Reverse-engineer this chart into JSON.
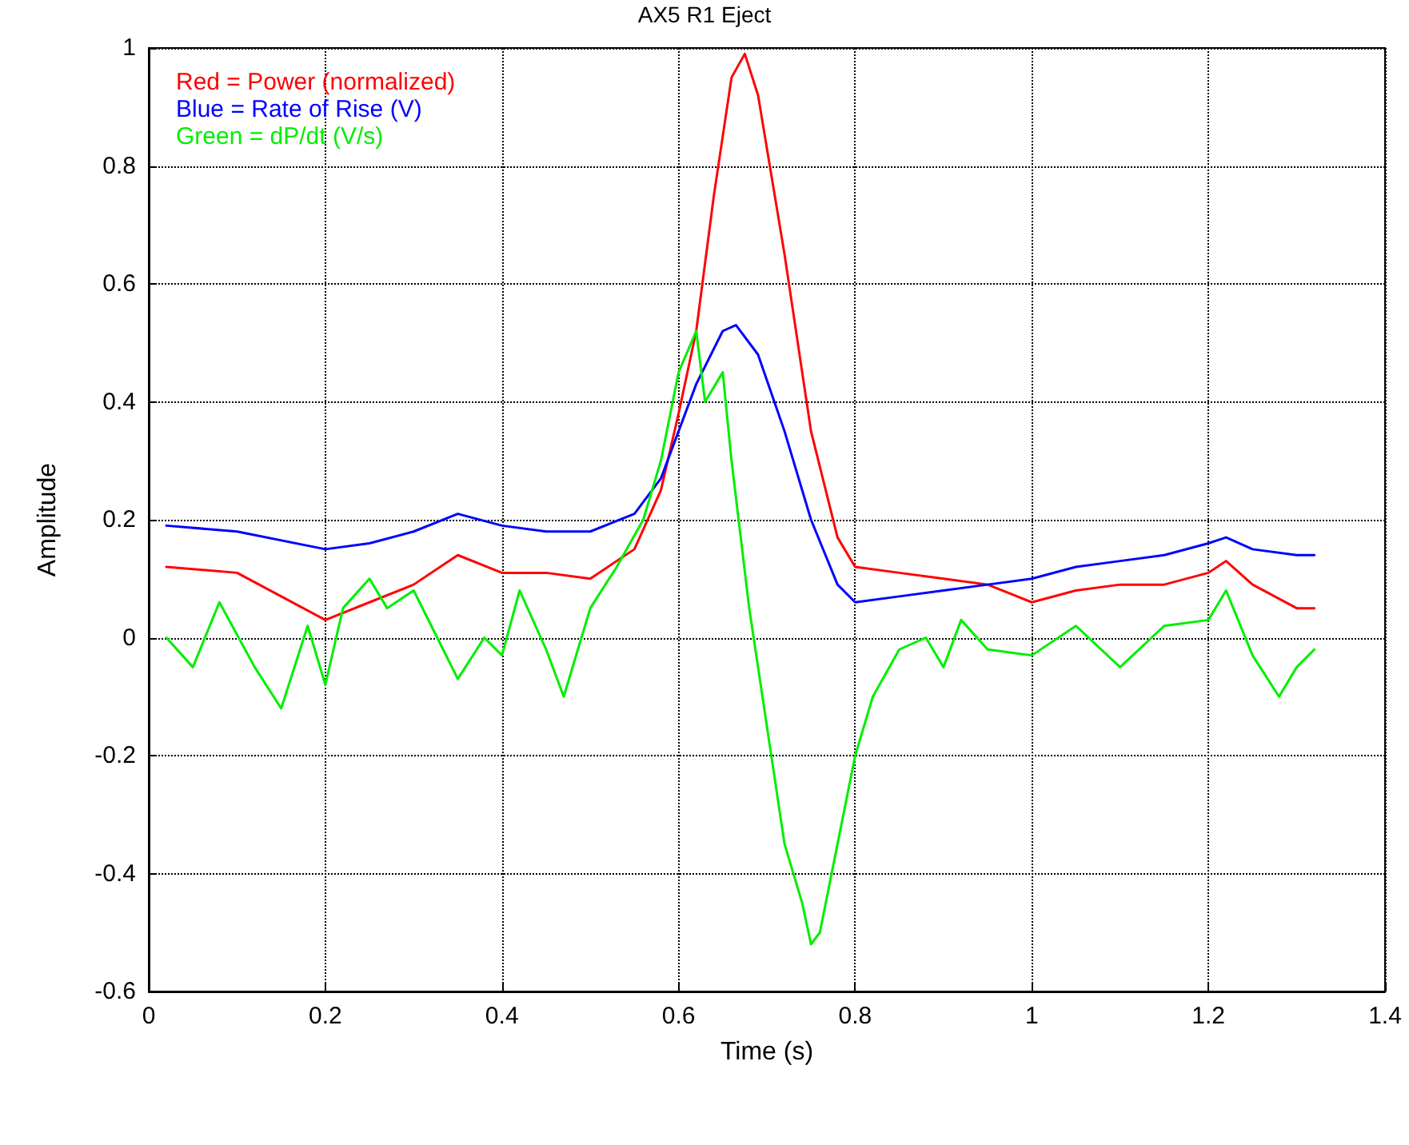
{
  "chart_data": {
    "type": "line",
    "title": "AX5 R1 Eject",
    "xlabel": "Time (s)",
    "ylabel": "Amplitude",
    "xlim": [
      0,
      1.4
    ],
    "xticks": [
      0,
      0.2,
      0.4,
      0.6,
      0.8,
      1,
      1.2,
      1.4
    ],
    "ylim": [
      -0.6,
      1
    ],
    "yticks": [
      -0.6,
      -0.4,
      -0.2,
      0,
      0.2,
      0.4,
      0.6,
      0.8,
      1
    ],
    "grid": true,
    "legend": "top left",
    "marker": "none",
    "line_style": "solid",
    "series": [
      {
        "name": "Red = Power (normalized)",
        "color": "#ff0000",
        "x": [
          0.02,
          0.1,
          0.15,
          0.2,
          0.25,
          0.3,
          0.35,
          0.4,
          0.45,
          0.5,
          0.55,
          0.58,
          0.6,
          0.62,
          0.64,
          0.66,
          0.675,
          0.69,
          0.72,
          0.75,
          0.78,
          0.8,
          0.85,
          0.9,
          0.95,
          1.0,
          1.05,
          1.1,
          1.15,
          1.2,
          1.22,
          1.25,
          1.3,
          1.32
        ],
        "values": [
          0.12,
          0.11,
          0.07,
          0.03,
          0.06,
          0.09,
          0.14,
          0.11,
          0.11,
          0.1,
          0.15,
          0.25,
          0.38,
          0.52,
          0.75,
          0.95,
          0.99,
          0.92,
          0.65,
          0.35,
          0.17,
          0.12,
          0.11,
          0.1,
          0.09,
          0.06,
          0.08,
          0.09,
          0.09,
          0.11,
          0.13,
          0.09,
          0.05,
          0.05
        ]
      },
      {
        "name": "Blue = Rate of Rise (V)",
        "color": "#0000ff",
        "x": [
          0.02,
          0.1,
          0.2,
          0.25,
          0.3,
          0.35,
          0.4,
          0.45,
          0.5,
          0.55,
          0.58,
          0.6,
          0.62,
          0.65,
          0.665,
          0.69,
          0.72,
          0.75,
          0.78,
          0.8,
          0.85,
          0.9,
          0.95,
          1.0,
          1.05,
          1.1,
          1.15,
          1.2,
          1.22,
          1.25,
          1.3,
          1.32
        ],
        "values": [
          0.19,
          0.18,
          0.15,
          0.16,
          0.18,
          0.21,
          0.19,
          0.18,
          0.18,
          0.21,
          0.27,
          0.35,
          0.43,
          0.52,
          0.53,
          0.48,
          0.35,
          0.2,
          0.09,
          0.06,
          0.07,
          0.08,
          0.09,
          0.1,
          0.12,
          0.13,
          0.14,
          0.16,
          0.17,
          0.15,
          0.14,
          0.14
        ]
      },
      {
        "name": "Green = dP/dt (V/s)",
        "color": "#00ee00",
        "x": [
          0.02,
          0.05,
          0.08,
          0.12,
          0.15,
          0.18,
          0.2,
          0.22,
          0.25,
          0.27,
          0.3,
          0.32,
          0.35,
          0.38,
          0.4,
          0.42,
          0.45,
          0.47,
          0.5,
          0.53,
          0.56,
          0.58,
          0.6,
          0.62,
          0.63,
          0.65,
          0.66,
          0.68,
          0.7,
          0.72,
          0.74,
          0.75,
          0.76,
          0.78,
          0.8,
          0.82,
          0.85,
          0.88,
          0.9,
          0.92,
          0.95,
          1.0,
          1.05,
          1.1,
          1.15,
          1.2,
          1.22,
          1.25,
          1.28,
          1.3,
          1.32
        ],
        "values": [
          0,
          -0.05,
          0.06,
          -0.05,
          -0.12,
          0.02,
          -0.08,
          0.05,
          0.1,
          0.05,
          0.08,
          0.02,
          -0.07,
          0,
          -0.03,
          0.08,
          -0.02,
          -0.1,
          0.05,
          0.12,
          0.2,
          0.3,
          0.45,
          0.52,
          0.4,
          0.45,
          0.3,
          0.05,
          -0.15,
          -0.35,
          -0.45,
          -0.52,
          -0.5,
          -0.35,
          -0.2,
          -0.1,
          -0.02,
          0,
          -0.05,
          0.03,
          -0.02,
          -0.03,
          0.02,
          -0.05,
          0.02,
          0.03,
          0.08,
          -0.03,
          -0.1,
          -0.05,
          -0.02
        ]
      }
    ]
  }
}
